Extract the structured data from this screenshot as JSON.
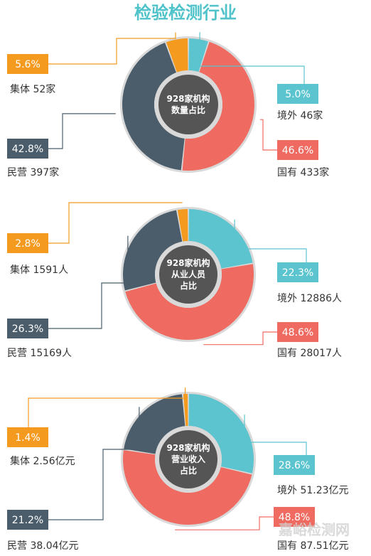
{
  "title": "检验检测行业",
  "watermark": "嘉峪检测网",
  "colors": {
    "guowai": "#5bc4cf",
    "guoyou": "#ef6b61",
    "minying": "#4b5d6b",
    "jiti": "#f39a1f",
    "center": "#555555",
    "title": "#4fc3c9"
  },
  "chart_data": [
    {
      "type": "pie",
      "center_lines": [
        "928家机构",
        "数量占比"
      ],
      "slices": [
        {
          "key": "guowai",
          "pct": 5.0,
          "pct_label": "5.0%",
          "name": "境外",
          "value_label": "46家"
        },
        {
          "key": "guoyou",
          "pct": 46.6,
          "pct_label": "46.6%",
          "name": "国有",
          "value_label": "433家"
        },
        {
          "key": "minying",
          "pct": 42.8,
          "pct_label": "42.8%",
          "name": "民营",
          "value_label": "397家"
        },
        {
          "key": "jiti",
          "pct": 5.6,
          "pct_label": "5.6%",
          "name": "集体",
          "value_label": "52家"
        }
      ]
    },
    {
      "type": "pie",
      "center_lines": [
        "928家机构",
        "从业人员",
        "占比"
      ],
      "slices": [
        {
          "key": "guowai",
          "pct": 22.3,
          "pct_label": "22.3%",
          "name": "境外",
          "value_label": "12886人"
        },
        {
          "key": "guoyou",
          "pct": 48.6,
          "pct_label": "48.6%",
          "name": "国有",
          "value_label": "28017人"
        },
        {
          "key": "minying",
          "pct": 26.3,
          "pct_label": "26.3%",
          "name": "民营",
          "value_label": "15169人"
        },
        {
          "key": "jiti",
          "pct": 2.8,
          "pct_label": "2.8%",
          "name": "集体",
          "value_label": "1591人"
        }
      ]
    },
    {
      "type": "pie",
      "center_lines": [
        "928家机构",
        "营业收入",
        "占比"
      ],
      "slices": [
        {
          "key": "guowai",
          "pct": 28.6,
          "pct_label": "28.6%",
          "name": "境外",
          "value_label": "51.23亿元"
        },
        {
          "key": "guoyou",
          "pct": 48.8,
          "pct_label": "48.8%",
          "name": "国有",
          "value_label": "87.51亿元"
        },
        {
          "key": "minying",
          "pct": 21.2,
          "pct_label": "21.2%",
          "name": "民营",
          "value_label": "38.04亿元"
        },
        {
          "key": "jiti",
          "pct": 1.4,
          "pct_label": "1.4%",
          "name": "集体",
          "value_label": "2.56亿元"
        }
      ]
    }
  ]
}
